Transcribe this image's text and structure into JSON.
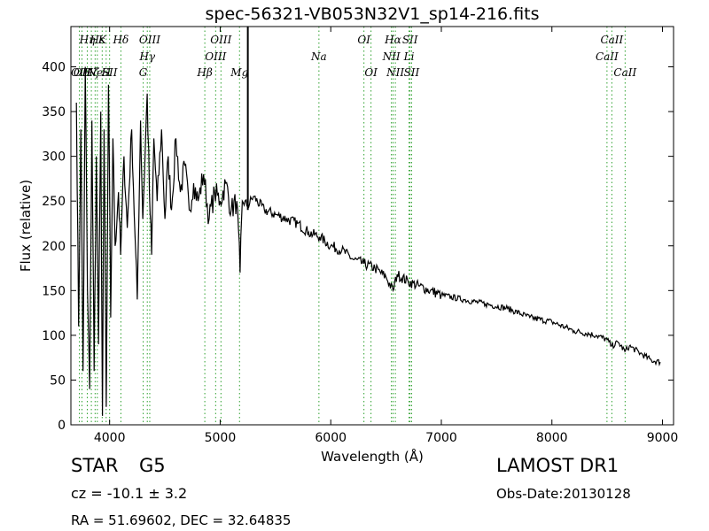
{
  "chart_data": {
    "type": "line",
    "title": "spec-56321-VB053N32V1_sp14-216.fits",
    "xlabel": "Wavelength (Å)",
    "ylabel": "Flux (relative)",
    "xlim": [
      3650,
      9100
    ],
    "ylim": [
      0,
      445
    ],
    "xticks": [
      4000,
      5000,
      6000,
      7000,
      8000,
      9000
    ],
    "yticks": [
      0,
      50,
      100,
      150,
      200,
      250,
      300,
      350,
      400
    ],
    "grid": false,
    "series": [
      {
        "color": "#000000",
        "points": [
          [
            3700,
            360
          ],
          [
            3720,
            110
          ],
          [
            3740,
            330
          ],
          [
            3760,
            60
          ],
          [
            3780,
            400
          ],
          [
            3800,
            150
          ],
          [
            3820,
            40
          ],
          [
            3840,
            340
          ],
          [
            3860,
            60
          ],
          [
            3880,
            300
          ],
          [
            3900,
            90
          ],
          [
            3920,
            350
          ],
          [
            3935,
            10
          ],
          [
            3950,
            330
          ],
          [
            3970,
            20
          ],
          [
            3990,
            380
          ],
          [
            4010,
            120
          ],
          [
            4030,
            320
          ],
          [
            4050,
            200
          ],
          [
            4080,
            260
          ],
          [
            4100,
            190
          ],
          [
            4130,
            300
          ],
          [
            4160,
            220
          ],
          [
            4200,
            330
          ],
          [
            4230,
            210
          ],
          [
            4250,
            140
          ],
          [
            4280,
            340
          ],
          [
            4300,
            230
          ],
          [
            4340,
            370
          ],
          [
            4360,
            260
          ],
          [
            4380,
            190
          ],
          [
            4400,
            320
          ],
          [
            4430,
            250
          ],
          [
            4470,
            330
          ],
          [
            4500,
            230
          ],
          [
            4530,
            300
          ],
          [
            4560,
            240
          ],
          [
            4600,
            320
          ],
          [
            4640,
            260
          ],
          [
            4680,
            290
          ],
          [
            4720,
            240
          ],
          [
            4760,
            270
          ],
          [
            4800,
            250
          ],
          [
            4850,
            280
          ],
          [
            4900,
            230
          ],
          [
            4950,
            260
          ],
          [
            5000,
            250
          ],
          [
            5050,
            270
          ],
          [
            5100,
            240
          ],
          [
            5150,
            250
          ],
          [
            5180,
            170
          ],
          [
            5200,
            250
          ],
          [
            5250,
            245
          ],
          [
            5300,
            255
          ],
          [
            5400,
            240
          ],
          [
            5500,
            235
          ],
          [
            5600,
            230
          ],
          [
            5700,
            225
          ],
          [
            5800,
            215
          ],
          [
            5900,
            210
          ],
          [
            6000,
            200
          ],
          [
            6100,
            195
          ],
          [
            6200,
            185
          ],
          [
            6300,
            180
          ],
          [
            6400,
            175
          ],
          [
            6500,
            165
          ],
          [
            6563,
            150
          ],
          [
            6600,
            168
          ],
          [
            6700,
            160
          ],
          [
            6800,
            155
          ],
          [
            6900,
            150
          ],
          [
            7000,
            145
          ],
          [
            7200,
            140
          ],
          [
            7400,
            135
          ],
          [
            7600,
            130
          ],
          [
            7800,
            120
          ],
          [
            8000,
            115
          ],
          [
            8200,
            105
          ],
          [
            8400,
            100
          ],
          [
            8500,
            95
          ],
          [
            8540,
            88
          ],
          [
            8600,
            92
          ],
          [
            8660,
            82
          ],
          [
            8700,
            88
          ],
          [
            8800,
            80
          ],
          [
            8900,
            72
          ],
          [
            8980,
            70
          ]
        ]
      }
    ],
    "lines": [
      {
        "wl": 3727,
        "labels": [
          "OII"
        ],
        "row": 2
      },
      {
        "wl": 3750,
        "labels": [
          "OII"
        ],
        "row": 3
      },
      {
        "wl": 3798,
        "labels": [
          "Hη"
        ],
        "row": 0
      },
      {
        "wl": 3835,
        "labels": [
          "Hζ"
        ],
        "row": 2
      },
      {
        "wl": 3869,
        "labels": [
          "Ne"
        ],
        "row": 3
      },
      {
        "wl": 3889,
        "labels": [
          "Hε"
        ],
        "row": 0
      },
      {
        "wl": 3933,
        "labels": [
          "K"
        ],
        "row": 0
      },
      {
        "wl": 3969,
        "labels": [
          "H"
        ],
        "row": 3
      },
      {
        "wl": 4000,
        "labels": [
          "SII"
        ],
        "row": 2
      },
      {
        "wl": 4102,
        "labels": [
          "Hδ"
        ],
        "row": 0
      },
      {
        "wl": 4304,
        "labels": [
          "G"
        ],
        "row": 3
      },
      {
        "wl": 4341,
        "labels": [
          "Hγ"
        ],
        "row": 1
      },
      {
        "wl": 4363,
        "labels": [
          "OIII"
        ],
        "row": 0
      },
      {
        "wl": 4861,
        "labels": [
          "Hβ"
        ],
        "row": 2
      },
      {
        "wl": 4959,
        "labels": [
          "OIII"
        ],
        "row": 1
      },
      {
        "wl": 5007,
        "labels": [
          "OIII"
        ],
        "row": 0
      },
      {
        "wl": 5175,
        "labels": [
          "Mg"
        ],
        "row": 2
      },
      {
        "wl": 5893,
        "labels": [
          "Na"
        ],
        "row": 1
      },
      {
        "wl": 6300,
        "labels": [
          "OI"
        ],
        "row": 0
      },
      {
        "wl": 6364,
        "labels": [
          "OI"
        ],
        "row": 2
      },
      {
        "wl": 6548,
        "labels": [
          "NII"
        ],
        "row": 1
      },
      {
        "wl": 6563,
        "labels": [
          "Hα"
        ],
        "row": 0
      },
      {
        "wl": 6584,
        "labels": [
          "NII"
        ],
        "row": 2
      },
      {
        "wl": 6708,
        "labels": [
          "Li"
        ],
        "row": 1
      },
      {
        "wl": 6717,
        "labels": [
          "SII"
        ],
        "row": 0
      },
      {
        "wl": 6731,
        "labels": [
          "SII"
        ],
        "row": 2
      },
      {
        "wl": 8498,
        "labels": [
          "CaII"
        ],
        "row": 1
      },
      {
        "wl": 8542,
        "labels": [
          "CaII"
        ],
        "row": 0
      },
      {
        "wl": 8662,
        "labels": [
          "CaII"
        ],
        "row": 2
      }
    ],
    "line_color": "#2ca02c"
  },
  "info": {
    "class": "STAR",
    "subclass": "G5",
    "cz": "cz = -10.1 ± 3.2",
    "survey": "LAMOST DR1",
    "obs_date": "Obs-Date:20130128",
    "coords": "RA = 51.69602, DEC = 32.64835"
  }
}
